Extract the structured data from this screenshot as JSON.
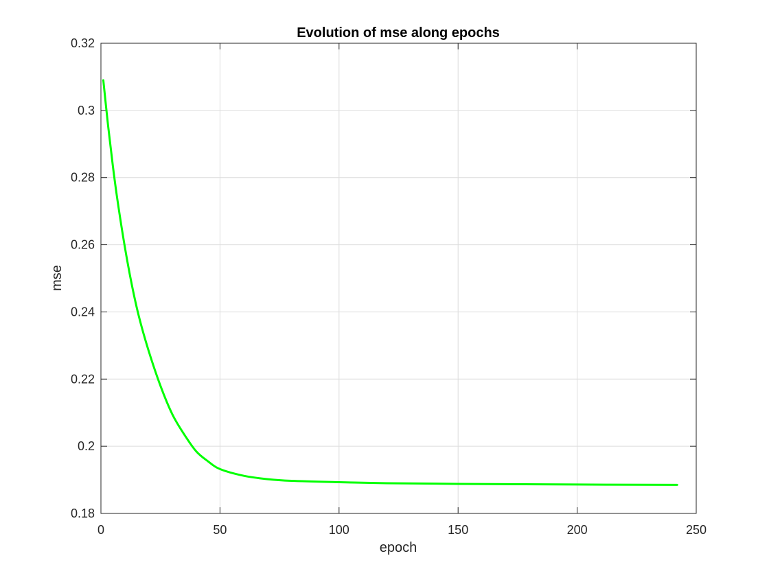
{
  "chart_data": {
    "type": "line",
    "title": "Evolution of mse along epochs",
    "xlabel": "epoch",
    "ylabel": "mse",
    "xlim": [
      0,
      250
    ],
    "ylim": [
      0.18,
      0.32
    ],
    "xticks": [
      0,
      50,
      100,
      150,
      200,
      250
    ],
    "yticks": [
      0.18,
      0.2,
      0.22,
      0.24,
      0.26,
      0.28,
      0.3,
      0.32
    ],
    "xtick_labels": [
      "0",
      "50",
      "100",
      "150",
      "200",
      "250"
    ],
    "ytick_labels": [
      "0.18",
      "0.2",
      "0.22",
      "0.24",
      "0.26",
      "0.28",
      "0.3",
      "0.32"
    ],
    "grid": true,
    "legend": "none",
    "series": [
      {
        "color": "#00ff00",
        "x": [
          1,
          3,
          5,
          7,
          10,
          13,
          16,
          20,
          25,
          30,
          35,
          40,
          45,
          50,
          60,
          70,
          80,
          100,
          120,
          150,
          200,
          242
        ],
        "y": [
          0.309,
          0.2955,
          0.2835,
          0.273,
          0.2595,
          0.248,
          0.2385,
          0.2285,
          0.218,
          0.2095,
          0.2035,
          0.1985,
          0.1955,
          0.1932,
          0.1912,
          0.1902,
          0.1897,
          0.1893,
          0.189,
          0.1888,
          0.1886,
          0.1885
        ]
      }
    ]
  }
}
